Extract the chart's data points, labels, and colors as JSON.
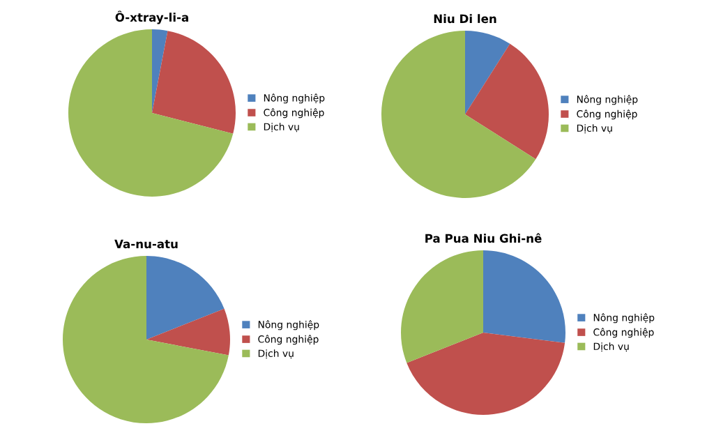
{
  "chart_data": [
    {
      "type": "pie",
      "title": "Ô-xtray-li-a",
      "categories": [
        "Nông nghiệp",
        "Công nghiệp",
        "Dịch vụ"
      ],
      "values": [
        3,
        26,
        71
      ],
      "colors": [
        "#4f81bd",
        "#c0504d",
        "#9bbb59"
      ],
      "legend": "right"
    },
    {
      "type": "pie",
      "title": "Niu Di len",
      "categories": [
        "Nông nghiệp",
        "Công nghiệp",
        "Dịch vụ"
      ],
      "values": [
        9,
        25,
        66
      ],
      "colors": [
        "#4f81bd",
        "#c0504d",
        "#9bbb59"
      ],
      "legend": "right"
    },
    {
      "type": "pie",
      "title": "Va-nu-atu",
      "categories": [
        "Nông nghiệp",
        "Công nghiệp",
        "Dịch vụ"
      ],
      "values": [
        19,
        9,
        72
      ],
      "colors": [
        "#4f81bd",
        "#c0504d",
        "#9bbb59"
      ],
      "legend": "right"
    },
    {
      "type": "pie",
      "title": "Pa Pua Niu Ghi-nê",
      "categories": [
        "Nông nghiệp",
        "Công nghiệp",
        "Dịch vụ"
      ],
      "values": [
        27,
        42,
        31
      ],
      "colors": [
        "#4f81bd",
        "#c0504d",
        "#9bbb59"
      ],
      "legend": "right"
    }
  ]
}
